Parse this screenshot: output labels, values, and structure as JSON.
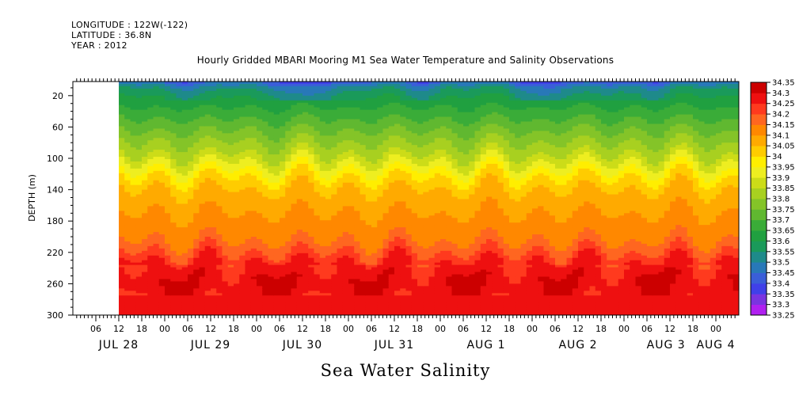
{
  "header": {
    "longitude": "LONGITUDE : 122W(-122)",
    "latitude": "LATITUDE : 36.8N",
    "year": "YEAR : 2012"
  },
  "title": "Hourly Gridded MBARI Mooring M1 Sea Water Temperature and Salinity Observations",
  "xtitle": "Sea Water Salinity",
  "chart_data": {
    "type": "heatmap",
    "title": "Hourly Gridded MBARI Mooring M1 Sea Water Temperature and Salinity Observations",
    "xlabel": "",
    "ylabel": "DEPTH (m)",
    "variable": "Sea Water Salinity",
    "time_range_hours": [
      0,
      174
    ],
    "data_start_hour": 12,
    "time_start": "2012-07-28 00:00",
    "ylim": [
      300,
      2
    ],
    "y_ticks": [
      20,
      60,
      100,
      140,
      180,
      220,
      260,
      300
    ],
    "x_hour_tick_labels": [
      "06",
      "12",
      "18",
      "00",
      "06",
      "12",
      "18",
      "00",
      "06",
      "12",
      "18",
      "00",
      "06",
      "12",
      "18",
      "00",
      "06",
      "12",
      "18",
      "00",
      "06",
      "12",
      "18",
      "00",
      "06",
      "12",
      "18",
      "00"
    ],
    "x_day_labels": [
      {
        "label": "JUL 28",
        "hour": 12
      },
      {
        "label": "JUL 29",
        "hour": 36
      },
      {
        "label": "JUL 30",
        "hour": 60
      },
      {
        "label": "JUL 31",
        "hour": 84
      },
      {
        "label": "AUG  1",
        "hour": 108
      },
      {
        "label": "AUG  2",
        "hour": 132
      },
      {
        "label": "AUG  3",
        "hour": 155
      },
      {
        "label": "AUG  4",
        "hour": 168
      }
    ],
    "colorbar": {
      "levels": [
        33.25,
        33.3,
        33.35,
        33.4,
        33.45,
        33.5,
        33.55,
        33.6,
        33.65,
        33.7,
        33.75,
        33.8,
        33.85,
        33.9,
        33.95,
        34,
        34.05,
        34.1,
        34.15,
        34.2,
        34.25,
        34.3,
        34.35
      ],
      "labels": [
        "33.25",
        "33.3",
        "33.35",
        "33.4",
        "33.45",
        "33.5",
        "33.55",
        "33.6",
        "33.65",
        "33.7",
        "33.75",
        "33.8",
        "33.85",
        "33.9",
        "33.95",
        "34",
        "34.05",
        "34.1",
        "34.15",
        "34.2",
        "34.25",
        "34.3",
        "34.35"
      ],
      "colors": [
        "#e020f0",
        "#b020f0",
        "#7a34e0",
        "#4040e8",
        "#3a5ed8",
        "#2878b8",
        "#1e8a8a",
        "#1a9a5a",
        "#20a040",
        "#3aac38",
        "#60b830",
        "#84c428",
        "#a8d020",
        "#ccdc18",
        "#eeee20",
        "#ffee00",
        "#ffcc00",
        "#ffaa00",
        "#ff8800",
        "#ff6620",
        "#ff3a1e",
        "#ee1010",
        "#cc0000",
        "#aa0000"
      ]
    },
    "profile": [
      {
        "depth": 2,
        "salinity": 33.45
      },
      {
        "depth": 10,
        "salinity": 33.55
      },
      {
        "depth": 20,
        "salinity": 33.6
      },
      {
        "depth": 35,
        "salinity": 33.65
      },
      {
        "depth": 50,
        "salinity": 33.7
      },
      {
        "depth": 65,
        "salinity": 33.75
      },
      {
        "depth": 80,
        "salinity": 33.8
      },
      {
        "depth": 95,
        "salinity": 33.85
      },
      {
        "depth": 105,
        "salinity": 33.9
      },
      {
        "depth": 115,
        "salinity": 33.95
      },
      {
        "depth": 125,
        "salinity": 34.0
      },
      {
        "depth": 140,
        "salinity": 34.05
      },
      {
        "depth": 170,
        "salinity": 34.1
      },
      {
        "depth": 205,
        "salinity": 34.15
      },
      {
        "depth": 220,
        "salinity": 34.2
      },
      {
        "depth": 232,
        "salinity": 34.25
      },
      {
        "depth": 260,
        "salinity": 34.3
      },
      {
        "depth": 290,
        "salinity": 34.25
      },
      {
        "depth": 300,
        "salinity": 34.25
      }
    ]
  }
}
